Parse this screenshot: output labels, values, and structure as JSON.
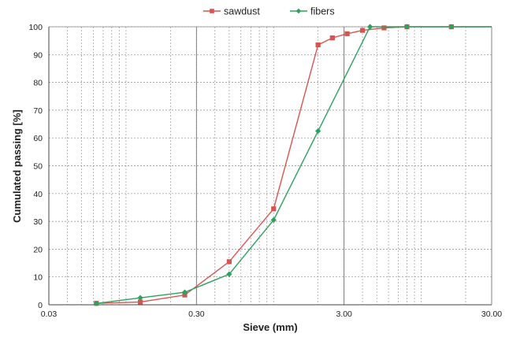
{
  "chart_data": {
    "type": "line",
    "xlabel": "Sieve (mm)",
    "ylabel": "Cumulated passing [%]",
    "x_scale": "log",
    "xlim": [
      0.03,
      30.0
    ],
    "ylim": [
      0,
      100
    ],
    "x_ticks": [
      0.03,
      0.3,
      3.0,
      30.0
    ],
    "x_tick_labels": [
      "0.03",
      "0.30",
      "3.00",
      "30.00"
    ],
    "y_ticks": [
      0,
      10,
      20,
      30,
      40,
      50,
      60,
      70,
      80,
      90,
      100
    ],
    "y_tick_labels": [
      "0",
      "10",
      "20",
      "30",
      "40",
      "50",
      "60",
      "70",
      "80",
      "90",
      "100"
    ],
    "grid": true,
    "legend_position": "top",
    "series": [
      {
        "name": "sawdust",
        "color": "#d9534f",
        "marker": "square",
        "points": [
          [
            0.063,
            0.5
          ],
          [
            0.125,
            1.0
          ],
          [
            0.25,
            3.5
          ],
          [
            0.5,
            15.5
          ],
          [
            1.0,
            34.5
          ],
          [
            2.0,
            93.5
          ],
          [
            2.5,
            96.0
          ],
          [
            3.15,
            97.5
          ],
          [
            4.0,
            98.7
          ],
          [
            5.6,
            99.6
          ],
          [
            8.0,
            100
          ],
          [
            16.0,
            100
          ]
        ]
      },
      {
        "name": "fibers",
        "color": "#2ca25f",
        "marker": "diamond",
        "points": [
          [
            0.063,
            0.5
          ],
          [
            0.125,
            2.5
          ],
          [
            0.25,
            4.5
          ],
          [
            0.5,
            11.0
          ],
          [
            1.0,
            30.5
          ],
          [
            2.0,
            62.5
          ],
          [
            4.5,
            100
          ],
          [
            8.0,
            100
          ],
          [
            16.0,
            100
          ]
        ]
      }
    ]
  }
}
